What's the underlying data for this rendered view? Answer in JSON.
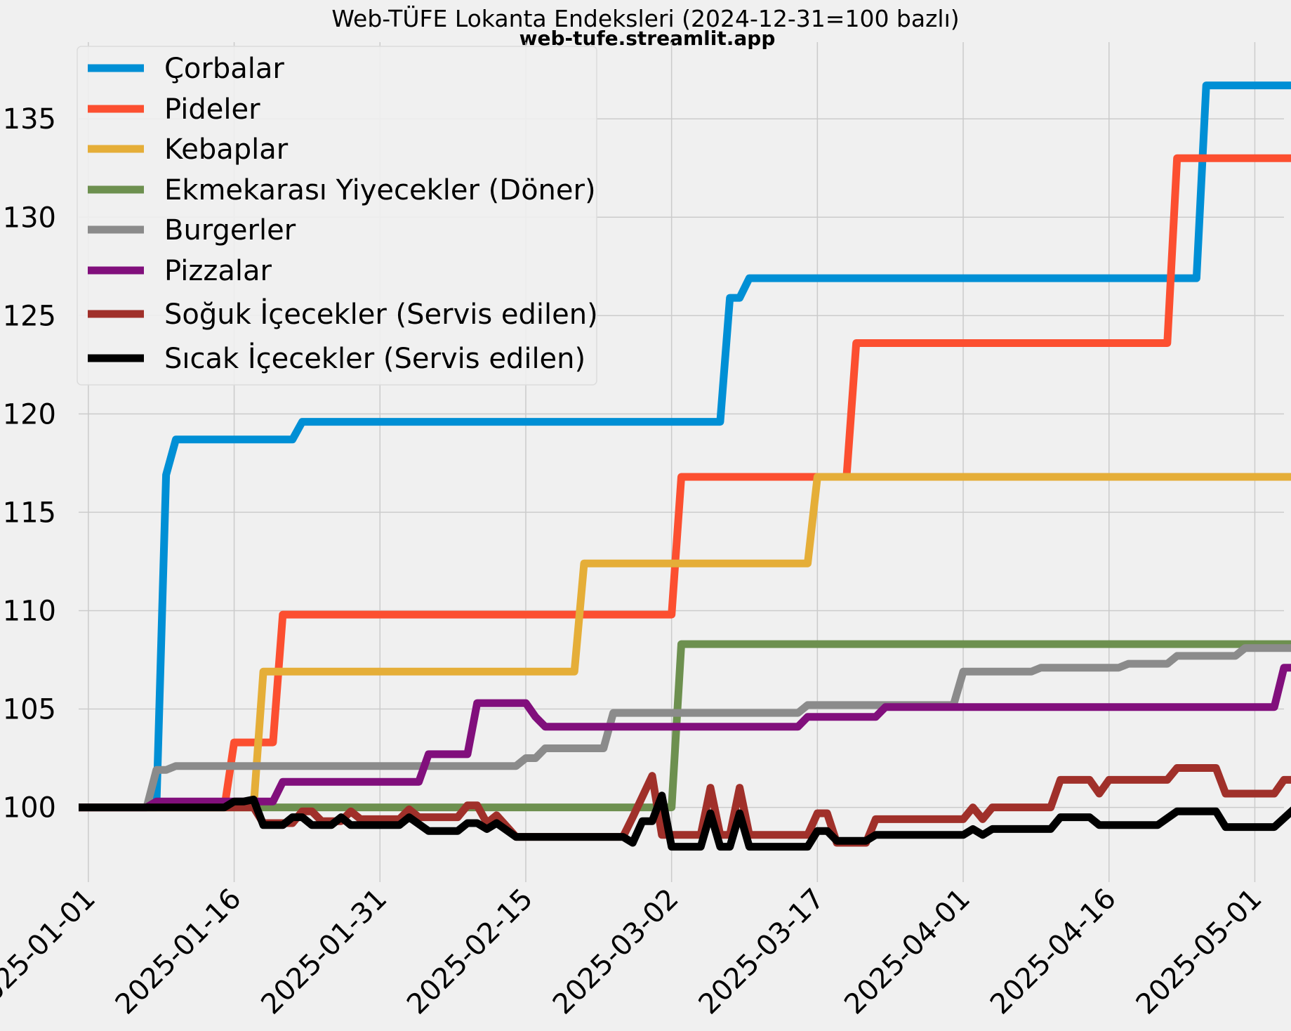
{
  "chart_data": {
    "type": "line",
    "title": "Web-TÜFE Lokanta Endeksleri (2024-12-31=100 bazlı)",
    "subtitle": "web-tufe.streamlit.app",
    "xlabel": "",
    "ylabel": "",
    "ylim": [
      96.2,
      138.9
    ],
    "xlim": [
      "2024-12-31",
      "2025-05-04"
    ],
    "grid": true,
    "legend_position": "top-left",
    "x_ticks": [
      "2025-01-01",
      "2025-01-16",
      "2025-01-31",
      "2025-02-15",
      "2025-03-02",
      "2025-03-17",
      "2025-04-01",
      "2025-04-16",
      "2025-05-01"
    ],
    "y_ticks": [
      100,
      105,
      110,
      115,
      120,
      125,
      130,
      135
    ],
    "series": [
      {
        "name": "Çorbalar",
        "color": "#008fd5",
        "points": [
          [
            "2024-12-31",
            100
          ],
          [
            "2025-01-08",
            100
          ],
          [
            "2025-01-09",
            116.9
          ],
          [
            "2025-01-10",
            118.7
          ],
          [
            "2025-01-22",
            118.7
          ],
          [
            "2025-01-23",
            119.6
          ],
          [
            "2025-02-20",
            119.6
          ],
          [
            "2025-03-07",
            119.6
          ],
          [
            "2025-03-08",
            125.9
          ],
          [
            "2025-03-09",
            125.9
          ],
          [
            "2025-03-10",
            126.9
          ],
          [
            "2025-04-25",
            126.9
          ],
          [
            "2025-04-26",
            136.7
          ],
          [
            "2025-05-06",
            136.7
          ]
        ]
      },
      {
        "name": "Pideler",
        "color": "#fc4f30",
        "points": [
          [
            "2024-12-31",
            100
          ],
          [
            "2025-01-15",
            100
          ],
          [
            "2025-01-16",
            103.3
          ],
          [
            "2025-01-20",
            103.3
          ],
          [
            "2025-01-21",
            109.8
          ],
          [
            "2025-03-02",
            109.8
          ],
          [
            "2025-03-03",
            116.8
          ],
          [
            "2025-03-20",
            116.8
          ],
          [
            "2025-03-21",
            123.6
          ],
          [
            "2025-04-22",
            123.6
          ],
          [
            "2025-04-23",
            133
          ],
          [
            "2025-05-06",
            133
          ]
        ]
      },
      {
        "name": "Kebaplar",
        "color": "#e5ae38",
        "points": [
          [
            "2024-12-31",
            100
          ],
          [
            "2025-01-18",
            100
          ],
          [
            "2025-01-19",
            106.9
          ],
          [
            "2025-02-20",
            106.9
          ],
          [
            "2025-02-21",
            112.4
          ],
          [
            "2025-03-16",
            112.4
          ],
          [
            "2025-03-17",
            116.8
          ],
          [
            "2025-05-06",
            116.8
          ]
        ]
      },
      {
        "name": "Ekmekarası Yiyecekler (Döner)",
        "color": "#6d904f",
        "points": [
          [
            "2024-12-31",
            100
          ],
          [
            "2025-03-02",
            100
          ],
          [
            "2025-03-03",
            108.3
          ],
          [
            "2025-05-06",
            108.3
          ]
        ]
      },
      {
        "name": "Burgerler",
        "color": "#8b8b8b",
        "points": [
          [
            "2024-12-31",
            100
          ],
          [
            "2025-01-07",
            100
          ],
          [
            "2025-01-08",
            101.9
          ],
          [
            "2025-01-09",
            101.9
          ],
          [
            "2025-01-10",
            102.1
          ],
          [
            "2025-02-14",
            102.1
          ],
          [
            "2025-02-15",
            102.5
          ],
          [
            "2025-02-16",
            102.5
          ],
          [
            "2025-02-17",
            103
          ],
          [
            "2025-02-23",
            103
          ],
          [
            "2025-02-24",
            104.8
          ],
          [
            "2025-03-15",
            104.8
          ],
          [
            "2025-03-16",
            105.2
          ],
          [
            "2025-03-31",
            105.2
          ],
          [
            "2025-04-01",
            106.9
          ],
          [
            "2025-04-08",
            106.9
          ],
          [
            "2025-04-09",
            107.1
          ],
          [
            "2025-04-17",
            107.1
          ],
          [
            "2025-04-18",
            107.3
          ],
          [
            "2025-04-22",
            107.3
          ],
          [
            "2025-04-23",
            107.7
          ],
          [
            "2025-04-29",
            107.7
          ],
          [
            "2025-04-30",
            108.1
          ],
          [
            "2025-05-06",
            108.1
          ]
        ]
      },
      {
        "name": "Pizzalar",
        "color": "#810f7c",
        "points": [
          [
            "2024-12-31",
            100
          ],
          [
            "2025-01-07",
            100
          ],
          [
            "2025-01-08",
            100.3
          ],
          [
            "2025-01-20",
            100.3
          ],
          [
            "2025-01-21",
            101.3
          ],
          [
            "2025-02-04",
            101.3
          ],
          [
            "2025-02-05",
            102.7
          ],
          [
            "2025-02-09",
            102.7
          ],
          [
            "2025-02-10",
            105.3
          ],
          [
            "2025-02-15",
            105.3
          ],
          [
            "2025-02-16",
            104.6
          ],
          [
            "2025-02-17",
            104.1
          ],
          [
            "2025-03-15",
            104.1
          ],
          [
            "2025-03-16",
            104.6
          ],
          [
            "2025-03-23",
            104.6
          ],
          [
            "2025-03-24",
            105.1
          ],
          [
            "2025-05-03",
            105.1
          ],
          [
            "2025-05-04",
            107.1
          ],
          [
            "2025-05-06",
            107.1
          ]
        ]
      },
      {
        "name": "Soğuk İçecekler (Servis edilen)",
        "color": "#a0302a",
        "points": [
          [
            "2024-12-31",
            100
          ],
          [
            "2025-01-18",
            100
          ],
          [
            "2025-01-19",
            99.2
          ],
          [
            "2025-01-22",
            99.2
          ],
          [
            "2025-01-23",
            99.8
          ],
          [
            "2025-01-24",
            99.8
          ],
          [
            "2025-01-25",
            99.3
          ],
          [
            "2025-01-27",
            99.3
          ],
          [
            "2025-01-28",
            99.8
          ],
          [
            "2025-01-29",
            99.4
          ],
          [
            "2025-02-02",
            99.4
          ],
          [
            "2025-02-03",
            99.9
          ],
          [
            "2025-02-04",
            99.5
          ],
          [
            "2025-02-08",
            99.5
          ],
          [
            "2025-02-09",
            100.1
          ],
          [
            "2025-02-10",
            100.1
          ],
          [
            "2025-02-11",
            99.2
          ],
          [
            "2025-02-12",
            99.6
          ],
          [
            "2025-02-14",
            98.5
          ],
          [
            "2025-02-25",
            98.5
          ],
          [
            "2025-02-26",
            99.5
          ],
          [
            "2025-02-28",
            101.6
          ],
          [
            "2025-03-01",
            98.6
          ],
          [
            "2025-03-05",
            98.6
          ],
          [
            "2025-03-06",
            101
          ],
          [
            "2025-03-07",
            98.6
          ],
          [
            "2025-03-08",
            98.6
          ],
          [
            "2025-03-09",
            101
          ],
          [
            "2025-03-10",
            98.6
          ],
          [
            "2025-03-16",
            98.6
          ],
          [
            "2025-03-17",
            99.7
          ],
          [
            "2025-03-18",
            99.7
          ],
          [
            "2025-03-19",
            98.2
          ],
          [
            "2025-03-22",
            98.2
          ],
          [
            "2025-03-23",
            99.4
          ],
          [
            "2025-04-01",
            99.4
          ],
          [
            "2025-04-02",
            100
          ],
          [
            "2025-04-03",
            99.4
          ],
          [
            "2025-04-04",
            100
          ],
          [
            "2025-04-10",
            100
          ],
          [
            "2025-04-11",
            101.4
          ],
          [
            "2025-04-14",
            101.4
          ],
          [
            "2025-04-15",
            100.7
          ],
          [
            "2025-04-16",
            101.4
          ],
          [
            "2025-04-22",
            101.4
          ],
          [
            "2025-04-23",
            102
          ],
          [
            "2025-04-27",
            102
          ],
          [
            "2025-04-28",
            100.7
          ],
          [
            "2025-05-03",
            100.7
          ],
          [
            "2025-05-04",
            101.4
          ],
          [
            "2025-05-06",
            101.4
          ]
        ]
      },
      {
        "name": "Sıcak İçecekler (Servis edilen)",
        "color": "#000000",
        "points": [
          [
            "2024-12-31",
            100
          ],
          [
            "2025-01-15",
            100
          ],
          [
            "2025-01-16",
            100.3
          ],
          [
            "2025-01-17",
            100.3
          ],
          [
            "2025-01-18",
            100.4
          ],
          [
            "2025-01-19",
            99.1
          ],
          [
            "2025-01-21",
            99.1
          ],
          [
            "2025-01-22",
            99.5
          ],
          [
            "2025-01-23",
            99.5
          ],
          [
            "2025-01-24",
            99.1
          ],
          [
            "2025-01-26",
            99.1
          ],
          [
            "2025-01-27",
            99.5
          ],
          [
            "2025-01-28",
            99.1
          ],
          [
            "2025-02-02",
            99.1
          ],
          [
            "2025-02-03",
            99.5
          ],
          [
            "2025-02-05",
            98.8
          ],
          [
            "2025-02-08",
            98.8
          ],
          [
            "2025-02-09",
            99.2
          ],
          [
            "2025-02-10",
            99.2
          ],
          [
            "2025-02-11",
            98.9
          ],
          [
            "2025-02-12",
            99.2
          ],
          [
            "2025-02-14",
            98.5
          ],
          [
            "2025-02-25",
            98.5
          ],
          [
            "2025-02-26",
            98.2
          ],
          [
            "2025-02-27",
            99.3
          ],
          [
            "2025-02-28",
            99.3
          ],
          [
            "2025-03-01",
            100.6
          ],
          [
            "2025-03-02",
            98
          ],
          [
            "2025-03-05",
            98
          ],
          [
            "2025-03-06",
            99.7
          ],
          [
            "2025-03-07",
            98
          ],
          [
            "2025-03-08",
            98
          ],
          [
            "2025-03-09",
            99.7
          ],
          [
            "2025-03-10",
            98
          ],
          [
            "2025-03-16",
            98
          ],
          [
            "2025-03-17",
            98.8
          ],
          [
            "2025-03-18",
            98.8
          ],
          [
            "2025-03-19",
            98.3
          ],
          [
            "2025-03-22",
            98.3
          ],
          [
            "2025-03-23",
            98.6
          ],
          [
            "2025-04-01",
            98.6
          ],
          [
            "2025-04-02",
            98.9
          ],
          [
            "2025-04-03",
            98.6
          ],
          [
            "2025-04-04",
            98.9
          ],
          [
            "2025-04-10",
            98.9
          ],
          [
            "2025-04-11",
            99.5
          ],
          [
            "2025-04-14",
            99.5
          ],
          [
            "2025-04-15",
            99.1
          ],
          [
            "2025-04-21",
            99.1
          ],
          [
            "2025-04-23",
            99.8
          ],
          [
            "2025-04-27",
            99.8
          ],
          [
            "2025-04-28",
            99
          ],
          [
            "2025-05-03",
            99
          ],
          [
            "2025-05-05",
            99.9
          ],
          [
            "2025-05-06",
            99.9
          ]
        ]
      }
    ]
  }
}
